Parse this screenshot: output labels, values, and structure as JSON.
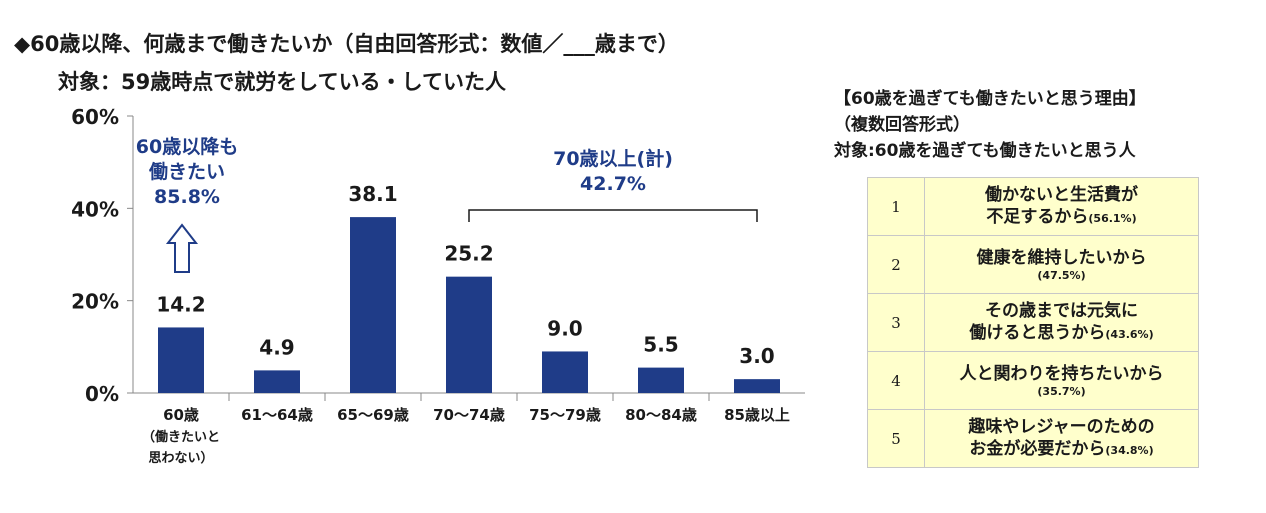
{
  "title": "◆60歳以降、何歳まで働きたいか（自由回答形式：数値／___歳まで）",
  "subtitle": "対象：59歳時点で就労をしている・していた人",
  "chart_data": {
    "type": "bar",
    "categories": [
      "60歳\n（働きたいと\n思わない）",
      "61～64歳",
      "65～69歳",
      "70～74歳",
      "75～79歳",
      "80～84歳",
      "85歳以上"
    ],
    "values": [
      14.2,
      4.9,
      38.1,
      25.2,
      9.0,
      5.5,
      3.0
    ],
    "value_labels": [
      "14.2",
      "4.9",
      "38.1",
      "25.2",
      "9.0",
      "5.5",
      "3.0"
    ],
    "ylim": [
      0,
      60
    ],
    "yticks": [
      0,
      20,
      40,
      60
    ],
    "ytick_labels": [
      "0%",
      "20%",
      "40%",
      "60%"
    ],
    "bar_color": "#1f3c88",
    "annotations": [
      {
        "lines": [
          "60歳以降も",
          "働きたい",
          "85.8%"
        ],
        "color": "#1f3c88"
      },
      {
        "lines": [
          "70歳以上(計)",
          "42.7%"
        ],
        "color": "#1f3c88",
        "bracket_from": 3,
        "bracket_to": 6
      }
    ]
  },
  "reasons": {
    "title_lines": [
      "【60歳を過ぎても働きたいと思う理由】",
      "（複数回答形式）",
      "対象:60歳を過ぎても働きたいと思う人"
    ],
    "rows": [
      {
        "rank": "1",
        "lines": [
          "働かないと生活費が",
          "不足するから"
        ],
        "pct": "(56.1%)"
      },
      {
        "rank": "2",
        "lines": [
          "健康を維持したいから"
        ],
        "pct": "(47.5%)"
      },
      {
        "rank": "3",
        "lines": [
          "その歳までは元気に",
          "働けると思うから"
        ],
        "pct": "(43.6%)"
      },
      {
        "rank": "4",
        "lines": [
          "人と関わりを持ちたいから"
        ],
        "pct": "(35.7%)"
      },
      {
        "rank": "5",
        "lines": [
          "趣味やレジャーのための",
          "お金が必要だから"
        ],
        "pct": "(34.8%)"
      }
    ],
    "bg_color": "#ffffcc"
  }
}
